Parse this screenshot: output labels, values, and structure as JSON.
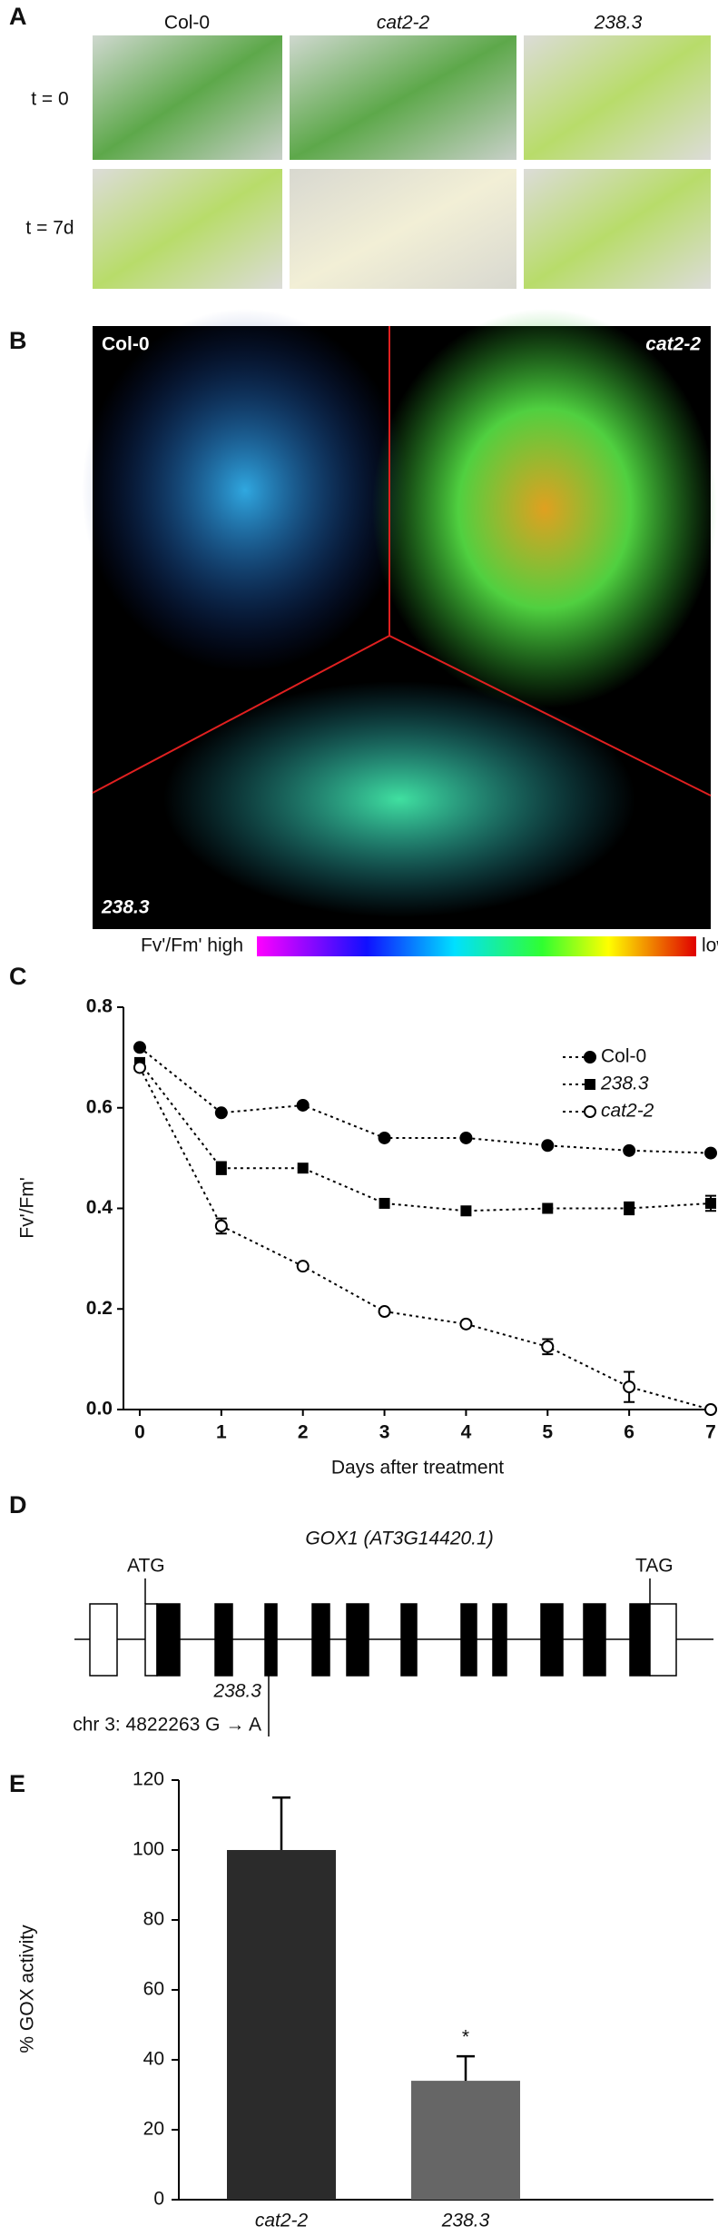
{
  "panel_a": {
    "label": "A",
    "columns": [
      "Col-0",
      "cat2-2",
      "238.3"
    ],
    "rows": [
      "t = 0",
      "t = 7d"
    ]
  },
  "panel_b": {
    "label": "B",
    "genotypes": [
      "Col-0",
      "cat2-2",
      "238.3"
    ],
    "colorbar_label": "Fv'/Fm' high",
    "colorbar_low": "low"
  },
  "panel_c": {
    "label": "C"
  },
  "panel_d": {
    "label": "D",
    "title": "GOX1 (AT3G14420.1)",
    "start_codon": "ATG",
    "stop_codon": "TAG",
    "mutant": "238.3",
    "mutation": "chr 3: 4822263 G → A"
  },
  "panel_e": {
    "label": "E"
  },
  "chart_data": [
    {
      "type": "line",
      "x_label": "Days after treatment",
      "y_label": "Fv'/Fm'",
      "x": [
        0,
        1,
        2,
        3,
        4,
        5,
        6,
        7
      ],
      "xlim": [
        -0.2,
        7
      ],
      "xticks": [
        0,
        1,
        2,
        3,
        4,
        5,
        6,
        7
      ],
      "ylim": [
        0,
        0.8
      ],
      "yticks": [
        {
          "value": 0,
          "label": "0.0"
        },
        0.2,
        0.4,
        0.6,
        0.8
      ],
      "legend": "upper right",
      "series": [
        {
          "name": "Col-0",
          "color": "#000000",
          "marker": "circle-filled",
          "italic": false,
          "values": [
            0.72,
            0.59,
            0.605,
            0.54,
            0.54,
            0.525,
            0.515,
            0.51
          ],
          "errors": [
            null,
            null,
            null,
            null,
            null,
            null,
            null,
            null
          ]
        },
        {
          "name": "238.3",
          "color": "#000000",
          "marker": "square",
          "italic": true,
          "values": [
            0.69,
            0.48,
            0.48,
            0.41,
            0.395,
            0.4,
            0.4,
            0.41
          ],
          "errors": [
            null,
            0.012,
            null,
            null,
            null,
            null,
            0.012,
            0.015
          ]
        },
        {
          "name": "cat2-2",
          "color": "#000000",
          "marker": "circle-open",
          "italic": true,
          "values": [
            0.68,
            0.365,
            0.285,
            0.195,
            0.17,
            0.125,
            0.045,
            0.0
          ],
          "errors": [
            null,
            0.015,
            null,
            null,
            null,
            0.015,
            0.03,
            null
          ]
        }
      ]
    },
    {
      "type": "bar",
      "y_label": "% GOX activity",
      "categories": [
        "cat2-2",
        "238.3"
      ],
      "values": [
        100,
        34
      ],
      "errors": [
        15,
        7
      ],
      "colors": [
        "#2b2b2b",
        "#666666"
      ],
      "ylim": [
        0,
        120
      ],
      "yticks": [
        0,
        20,
        40,
        60,
        80,
        100,
        120
      ],
      "annotation": "*"
    }
  ]
}
